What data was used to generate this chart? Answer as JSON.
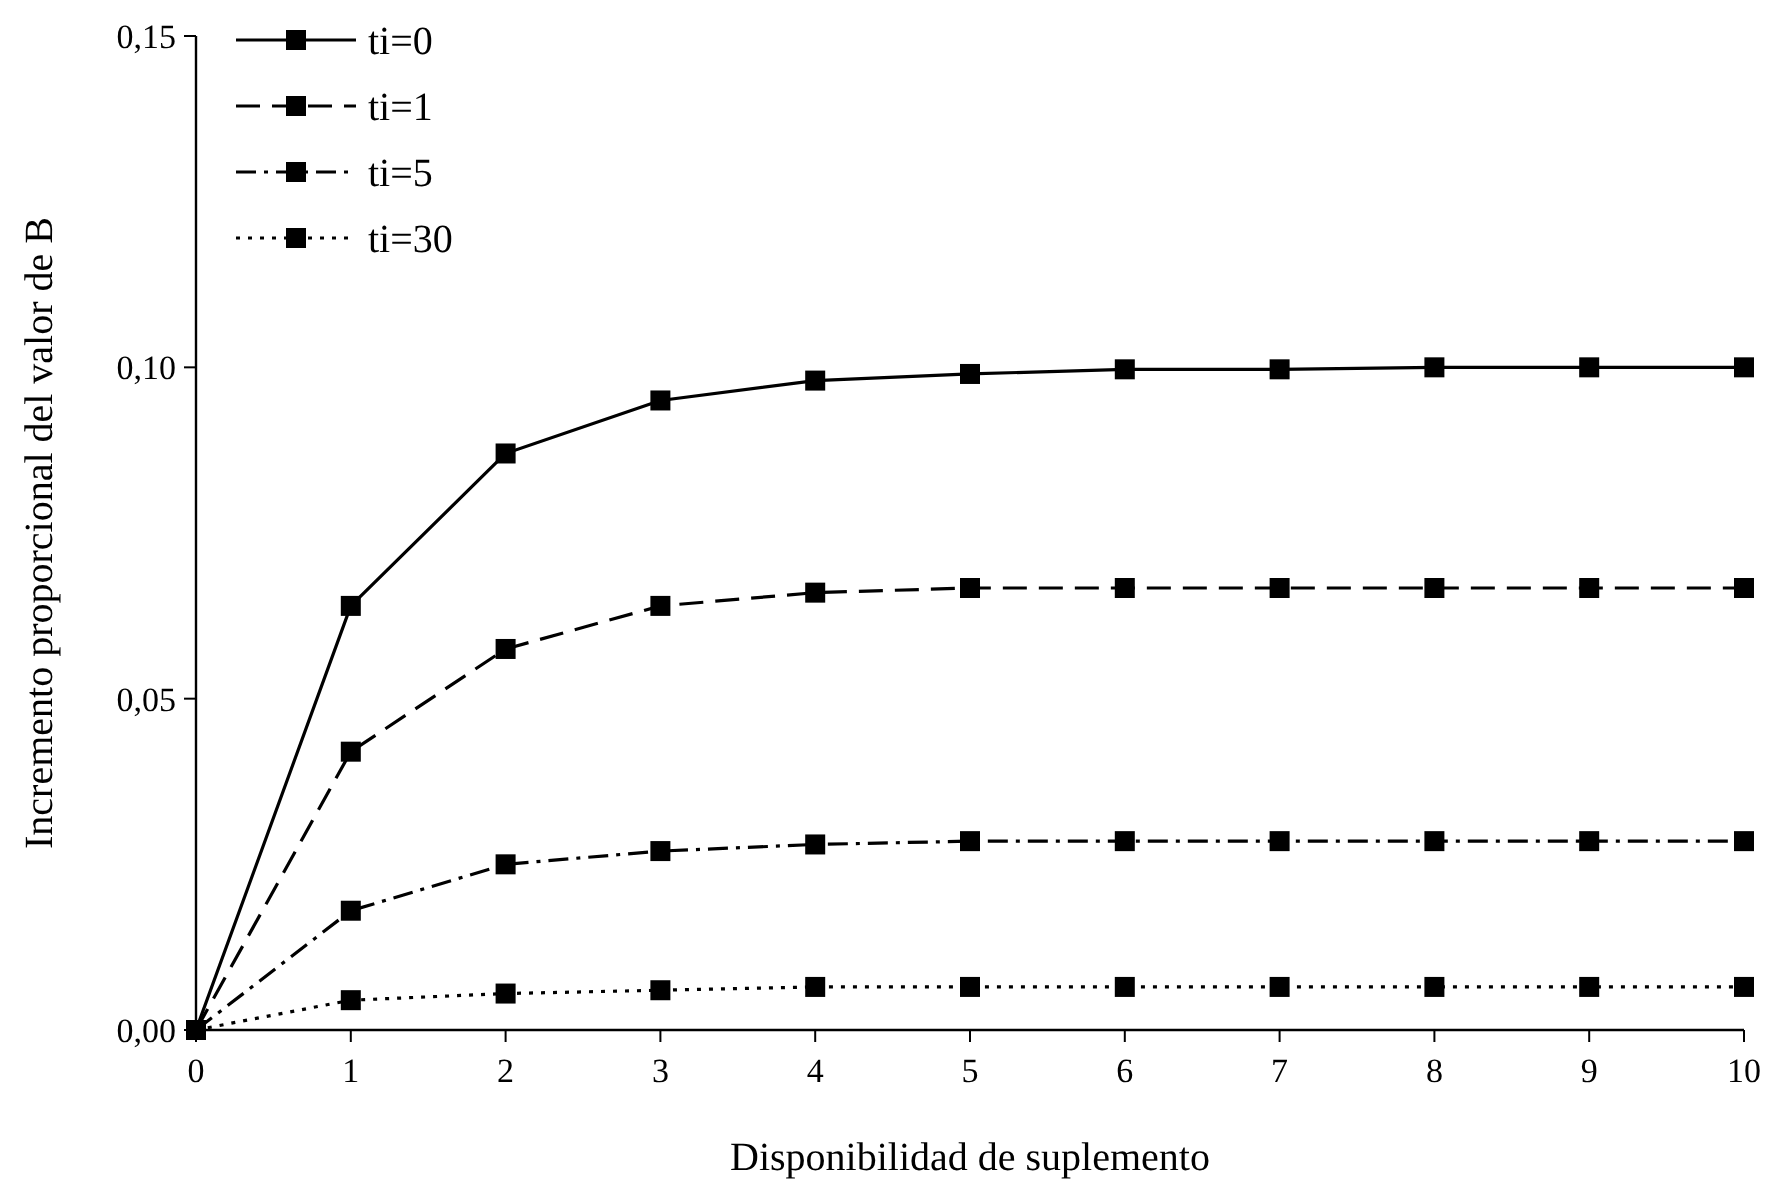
{
  "chart_data": {
    "type": "line",
    "xlabel": "Disponibilidad de suplemento",
    "ylabel": "Incremento proporcional del valor de B",
    "x": [
      0,
      1,
      2,
      3,
      4,
      5,
      6,
      7,
      8,
      9,
      10
    ],
    "xlim": [
      0,
      10
    ],
    "xticks": [
      0,
      1,
      2,
      3,
      4,
      5,
      6,
      7,
      8,
      9,
      10
    ],
    "ylim": [
      0,
      0.15
    ],
    "yticks": [
      {
        "value": 0,
        "label": "0,00"
      },
      {
        "value": 0.05,
        "label": "0,05"
      },
      {
        "value": 0.1,
        "label": "0,10"
      },
      {
        "value": 0.15,
        "label": "0,15"
      }
    ],
    "marker": "square",
    "legend": "top left",
    "grid": false,
    "series": [
      {
        "name": "ti=0",
        "color": "#000000",
        "line_style": "solid",
        "values": [
          0,
          0.064,
          0.087,
          0.095,
          0.098,
          0.099,
          0.0997,
          0.0997,
          0.1,
          0.1,
          0.1
        ]
      },
      {
        "name": "ti=1",
        "color": "#000000",
        "line_style": "dashed",
        "values": [
          0,
          0.042,
          0.0575,
          0.064,
          0.066,
          0.0667,
          0.0667,
          0.0667,
          0.0667,
          0.0667,
          0.0667
        ]
      },
      {
        "name": "ti=5",
        "color": "#000000",
        "line_style": "dashdot",
        "values": [
          0,
          0.018,
          0.025,
          0.027,
          0.028,
          0.0285,
          0.0285,
          0.0285,
          0.0285,
          0.0285,
          0.0285
        ]
      },
      {
        "name": "ti=30",
        "color": "#000000",
        "line_style": "dotted",
        "values": [
          0,
          0.0045,
          0.0055,
          0.006,
          0.0065,
          0.0065,
          0.0065,
          0.0065,
          0.0065,
          0.0065,
          0.0065
        ]
      }
    ]
  }
}
